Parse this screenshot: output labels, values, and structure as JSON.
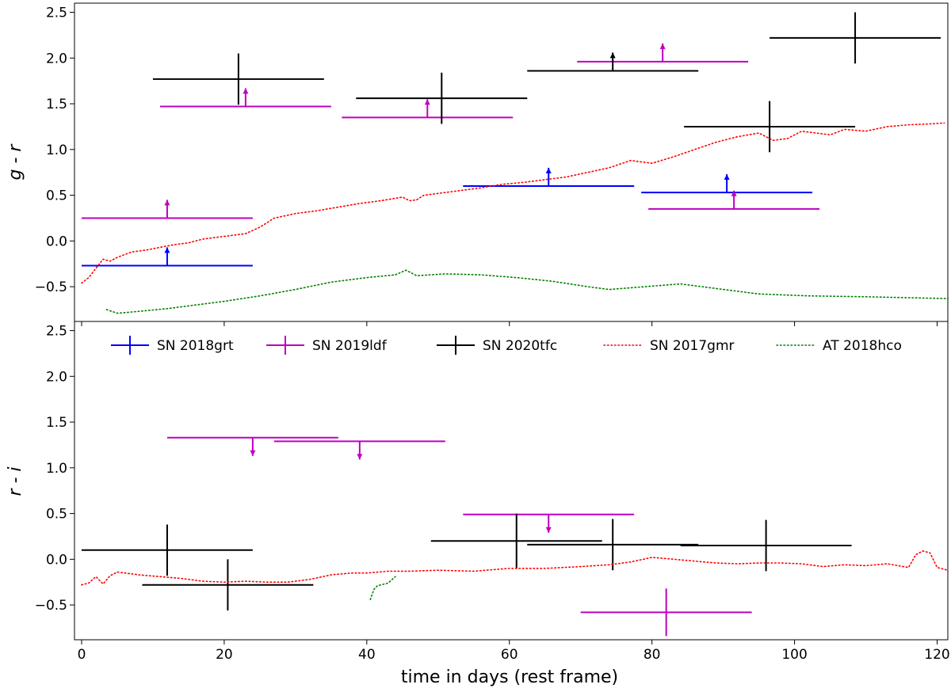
{
  "chart_data": [
    {
      "type": "scatter",
      "panel": "top",
      "ylabel": "g - r",
      "xlim": [
        -1,
        121.5
      ],
      "ylim": [
        -0.88,
        2.6
      ],
      "yticks": [
        -0.5,
        0.0,
        0.5,
        1.0,
        1.5,
        2.0,
        2.5
      ],
      "ytick_labels": [
        "−0.5",
        "0.0",
        "0.5",
        "1.0",
        "1.5",
        "2.0",
        "2.5"
      ],
      "series": [
        {
          "name": "SN 2018grt",
          "color": "#0000ff",
          "points": [
            {
              "x": 12,
              "xmin": 0,
              "xmax": 24,
              "y": -0.27,
              "lower_limit": true
            },
            {
              "x": 65.5,
              "xmin": 53.5,
              "xmax": 77.5,
              "y": 0.6,
              "lower_limit": true
            },
            {
              "x": 90.5,
              "xmin": 78.5,
              "xmax": 102.5,
              "y": 0.53,
              "lower_limit": true
            }
          ]
        },
        {
          "name": "SN 2019ldf",
          "color": "#bf00bf",
          "points": [
            {
              "x": 12,
              "xmin": 0,
              "xmax": 24,
              "y": 0.25,
              "lower_limit": true
            },
            {
              "x": 23,
              "xmin": 11,
              "xmax": 35,
              "y": 1.47,
              "lower_limit": true
            },
            {
              "x": 48.5,
              "xmin": 36.5,
              "xmax": 60.5,
              "y": 1.35,
              "lower_limit": true
            },
            {
              "x": 81.5,
              "xmin": 69.5,
              "xmax": 93.5,
              "y": 1.96,
              "lower_limit": true
            },
            {
              "x": 91.5,
              "xmin": 79.5,
              "xmax": 103.5,
              "y": 0.35,
              "lower_limit": true
            }
          ]
        },
        {
          "name": "SN 2020tfc",
          "color": "#000000",
          "points": [
            {
              "x": 22,
              "xmin": 10,
              "xmax": 34,
              "y": 1.77,
              "ylo": 1.49,
              "yhi": 2.05
            },
            {
              "x": 50.5,
              "xmin": 38.5,
              "xmax": 62.5,
              "y": 1.56,
              "ylo": 1.28,
              "yhi": 1.84
            },
            {
              "x": 74.5,
              "xmin": 62.5,
              "xmax": 86.5,
              "y": 1.86,
              "lower_limit": true
            },
            {
              "x": 96.5,
              "xmin": 84.5,
              "xmax": 108.5,
              "y": 1.25,
              "ylo": 0.97,
              "yhi": 1.53
            },
            {
              "x": 108.5,
              "xmin": 96.5,
              "xmax": 120.5,
              "y": 2.22,
              "ylo": 1.94,
              "yhi": 2.5
            }
          ]
        },
        {
          "name": "SN 2017gmr",
          "color": "#ff0000",
          "style": "dotted",
          "x": [
            0,
            1,
            2,
            3,
            4,
            5,
            7,
            9,
            11,
            13,
            15,
            17,
            19,
            21,
            23,
            25,
            27,
            30,
            33,
            36,
            39,
            42,
            45,
            46,
            47,
            48,
            50,
            53,
            56,
            59,
            62,
            65,
            68,
            71,
            74,
            77,
            80,
            83,
            86,
            89,
            92,
            95,
            97,
            99,
            101,
            103,
            105,
            107,
            110,
            113,
            116,
            119,
            121
          ],
          "y": [
            -0.46,
            -0.4,
            -0.3,
            -0.2,
            -0.22,
            -0.18,
            -0.12,
            -0.1,
            -0.07,
            -0.04,
            -0.02,
            0.02,
            0.04,
            0.06,
            0.08,
            0.15,
            0.25,
            0.3,
            0.33,
            0.37,
            0.41,
            0.44,
            0.48,
            0.44,
            0.45,
            0.5,
            0.52,
            0.55,
            0.58,
            0.62,
            0.64,
            0.67,
            0.7,
            0.75,
            0.8,
            0.88,
            0.85,
            0.92,
            1.0,
            1.08,
            1.14,
            1.18,
            1.1,
            1.12,
            1.2,
            1.18,
            1.16,
            1.22,
            1.2,
            1.25,
            1.27,
            1.28,
            1.29
          ]
        },
        {
          "name": "AT 2018hco",
          "color": "#008000",
          "style": "dotted",
          "x": [
            3.5,
            5,
            8,
            12,
            16,
            20,
            25,
            30,
            35,
            40,
            44,
            45.5,
            47,
            51,
            56,
            61,
            66,
            71,
            74,
            79,
            84,
            89,
            95,
            102,
            110,
            121.5
          ],
          "y": [
            -0.75,
            -0.79,
            -0.77,
            -0.74,
            -0.7,
            -0.66,
            -0.6,
            -0.53,
            -0.45,
            -0.4,
            -0.37,
            -0.32,
            -0.38,
            -0.36,
            -0.37,
            -0.4,
            -0.44,
            -0.5,
            -0.53,
            -0.5,
            -0.47,
            -0.52,
            -0.58,
            -0.6,
            -0.61,
            -0.63
          ]
        }
      ]
    },
    {
      "type": "scatter",
      "panel": "bottom",
      "ylabel": "r - i",
      "xlabel": "time in days (rest frame)",
      "xlim": [
        -1,
        121.5
      ],
      "ylim": [
        -0.88,
        2.6
      ],
      "xticks": [
        0,
        20,
        40,
        60,
        80,
        100,
        120
      ],
      "xtick_labels": [
        "0",
        "20",
        "40",
        "60",
        "80",
        "100",
        "120"
      ],
      "yticks": [
        -0.5,
        0.0,
        0.5,
        1.0,
        1.5,
        2.0,
        2.5
      ],
      "ytick_labels": [
        "−0.5",
        "0.0",
        "0.5",
        "1.0",
        "1.5",
        "2.0",
        "2.5"
      ],
      "series": [
        {
          "name": "SN 2019ldf",
          "color": "#bf00bf",
          "points": [
            {
              "x": 24,
              "xmin": 12,
              "xmax": 36,
              "y": 1.33,
              "upper_limit": true
            },
            {
              "x": 39,
              "xmin": 27,
              "xmax": 51,
              "y": 1.29,
              "upper_limit": true
            },
            {
              "x": 65.5,
              "xmin": 53.5,
              "xmax": 77.5,
              "y": 0.49,
              "upper_limit": true
            },
            {
              "x": 82,
              "xmin": 70,
              "xmax": 94,
              "y": -0.58,
              "ylo": -0.84,
              "yhi": -0.32
            }
          ]
        },
        {
          "name": "SN 2020tfc",
          "color": "#000000",
          "points": [
            {
              "x": 12,
              "xmin": 0,
              "xmax": 24,
              "y": 0.1,
              "ylo": -0.18,
              "yhi": 0.38
            },
            {
              "x": 20.5,
              "xmin": 8.5,
              "xmax": 32.5,
              "y": -0.28,
              "ylo": -0.56,
              "yhi": 0.0
            },
            {
              "x": 61,
              "xmin": 49,
              "xmax": 73,
              "y": 0.2,
              "ylo": -0.1,
              "yhi": 0.5
            },
            {
              "x": 74.5,
              "xmin": 62.5,
              "xmax": 86.5,
              "y": 0.16,
              "ylo": -0.12,
              "yhi": 0.44
            },
            {
              "x": 96,
              "xmin": 84,
              "xmax": 108,
              "y": 0.15,
              "ylo": -0.13,
              "yhi": 0.43
            }
          ]
        },
        {
          "name": "SN 2017gmr",
          "color": "#ff0000",
          "style": "dotted",
          "x": [
            0,
            1,
            2,
            3,
            4,
            5,
            8,
            11,
            14,
            17,
            20,
            23,
            26,
            29,
            32,
            35,
            38,
            40,
            43,
            46,
            50,
            55,
            60,
            65,
            70,
            74,
            77,
            80,
            83,
            86,
            89,
            92,
            95,
            98,
            101,
            104,
            107,
            110,
            113,
            116,
            117,
            118,
            119,
            120,
            121.5
          ],
          "y": [
            -0.28,
            -0.26,
            -0.19,
            -0.27,
            -0.18,
            -0.14,
            -0.17,
            -0.19,
            -0.21,
            -0.24,
            -0.25,
            -0.24,
            -0.25,
            -0.25,
            -0.22,
            -0.17,
            -0.15,
            -0.15,
            -0.13,
            -0.13,
            -0.12,
            -0.13,
            -0.1,
            -0.1,
            -0.08,
            -0.06,
            -0.03,
            0.02,
            0.0,
            -0.02,
            -0.04,
            -0.05,
            -0.04,
            -0.04,
            -0.05,
            -0.08,
            -0.06,
            -0.07,
            -0.05,
            -0.09,
            0.05,
            0.09,
            0.07,
            -0.09,
            -0.12
          ]
        },
        {
          "name": "AT 2018hco",
          "color": "#008000",
          "style": "dotted",
          "x": [
            40.5,
            41,
            41.5,
            42,
            43,
            44
          ],
          "y": [
            -0.44,
            -0.33,
            -0.29,
            -0.28,
            -0.26,
            -0.19
          ]
        }
      ]
    }
  ],
  "legend": {
    "placement": "top of bottom panel",
    "entries": [
      {
        "name": "SN 2018grt",
        "color": "#0000ff",
        "marker": "errorbar"
      },
      {
        "name": "SN 2019ldf",
        "color": "#bf00bf",
        "marker": "errorbar"
      },
      {
        "name": "SN 2020tfc",
        "color": "#000000",
        "marker": "errorbar"
      },
      {
        "name": "SN 2017gmr",
        "color": "#ff0000",
        "marker": "dotted-line"
      },
      {
        "name": "AT 2018hco",
        "color": "#008000",
        "marker": "dotted-line"
      }
    ]
  }
}
